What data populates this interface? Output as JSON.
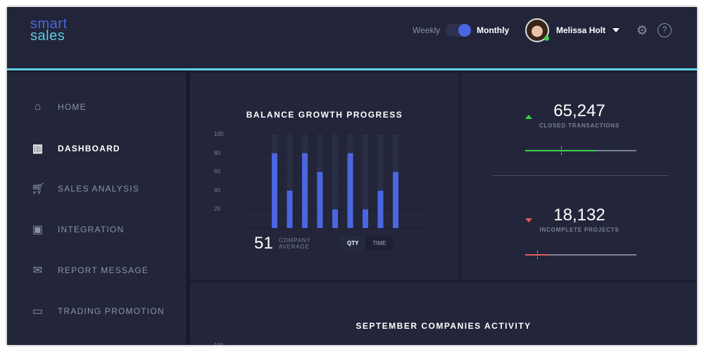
{
  "brand": {
    "line1": "smart",
    "line2": "sales"
  },
  "header": {
    "toggle_left": "Weekly",
    "toggle_right": "Monthly",
    "toggle_state": "Monthly",
    "user_name": "Melissa Holt",
    "user_status": "online",
    "icons": [
      "gear-icon",
      "help-icon"
    ]
  },
  "sidebar": {
    "items": [
      {
        "label": "HOME",
        "icon": "home-icon",
        "active": false
      },
      {
        "label": "DASHBOARD",
        "icon": "bar-chart-icon",
        "active": true
      },
      {
        "label": "SALES ANALYSIS",
        "icon": "cart-icon",
        "active": false
      },
      {
        "label": "INTEGRATION",
        "icon": "image-icon",
        "active": false
      },
      {
        "label": "REPORT MESSAGE",
        "icon": "mail-icon",
        "active": false
      },
      {
        "label": "TRADING PROMOTION",
        "icon": "monitor-icon",
        "active": false
      }
    ]
  },
  "balance": {
    "average": "51",
    "average_label1": "COMPANY",
    "average_label2": "AVERAGE",
    "tabs": [
      "QTY",
      "TIME"
    ],
    "active_tab": "QTY"
  },
  "chart_data": {
    "type": "bar",
    "title": "BALANCE GROWTH PROGRESS",
    "values": [
      80,
      40,
      80,
      60,
      20,
      80,
      20,
      40,
      60
    ],
    "ylim": [
      0,
      100
    ],
    "yticks": [
      "100",
      "80",
      "60",
      "40",
      "20"
    ],
    "bar_color": "#4a66e0"
  },
  "stats": [
    {
      "value": "65,247",
      "label": "CLOSED TRANSACTIONS",
      "trend": "up",
      "color": "#3dd24d",
      "progress": 0.63,
      "marker": 0.32
    },
    {
      "value": "18,132",
      "label": "INCOMPLETE PROJECTS",
      "trend": "down",
      "color": "#e05a5a",
      "progress": 0.22,
      "marker": 0.11
    }
  ],
  "activity": {
    "title": "SEPTEMBER COMPANIES ACTIVITY",
    "ytick": "100"
  }
}
